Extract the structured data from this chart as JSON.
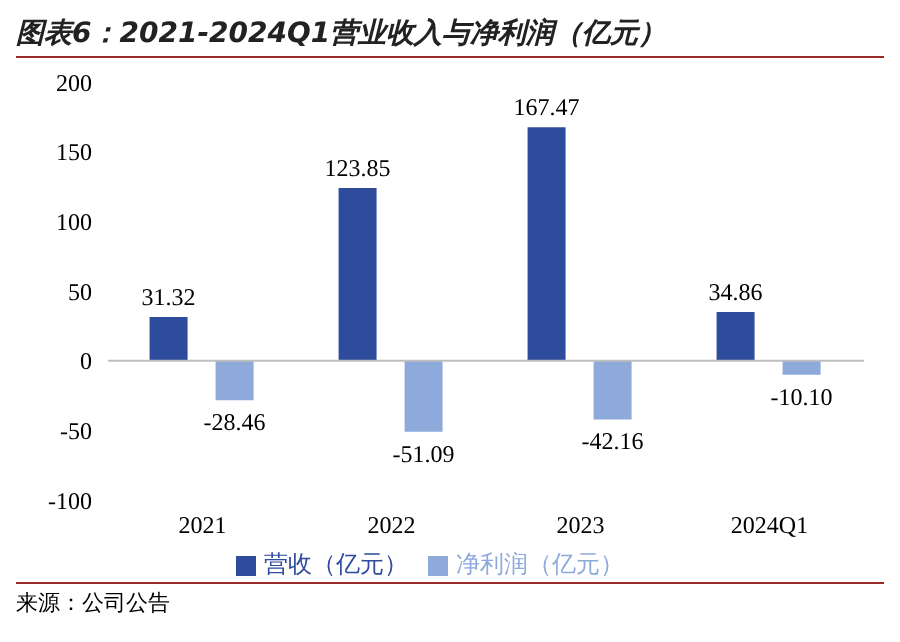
{
  "chart_data": {
    "type": "bar",
    "title": "图表6：2021-2024Q1营业收入与净利润（亿元）",
    "categories": [
      "2021",
      "2022",
      "2023",
      "2024Q1"
    ],
    "series": [
      {
        "name": "营收（亿元）",
        "color": "#2f4b9c",
        "values": [
          31.32,
          123.85,
          167.47,
          34.86
        ]
      },
      {
        "name": "净利润（亿元）",
        "color": "#8eaadb",
        "values": [
          -28.46,
          -51.09,
          -42.16,
          -10.1
        ],
        "value_labels": [
          "-28.46",
          "-51.09",
          "-42.16",
          "-10.10"
        ]
      }
    ],
    "ylim": [
      -100,
      200
    ],
    "yticks": [
      -100,
      -50,
      0,
      50,
      100,
      150,
      200
    ],
    "ref_lines": [
      {
        "axis": "y",
        "value": 0,
        "color": "#bfbfbf"
      }
    ],
    "legend": "bottom",
    "data_labels": true,
    "annotations": [
      "来源：公司公告"
    ]
  }
}
